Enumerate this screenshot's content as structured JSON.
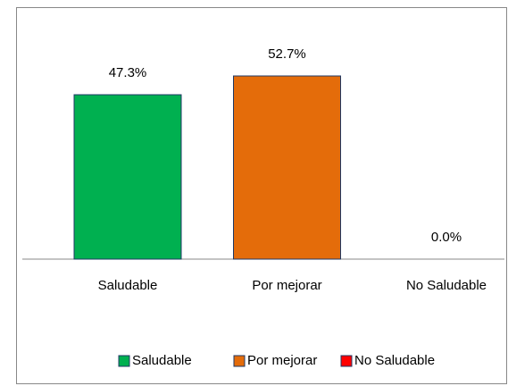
{
  "chart_data": {
    "type": "bar",
    "categories": [
      "Saludable",
      "Por mejorar",
      "No Saludable"
    ],
    "values": [
      47.3,
      52.7,
      0.0
    ],
    "value_labels": [
      "47.3%",
      "52.7%",
      "0.0%"
    ],
    "colors": [
      "#00b050",
      "#e46c0a",
      "#ff0000"
    ],
    "legend": "bottom"
  }
}
